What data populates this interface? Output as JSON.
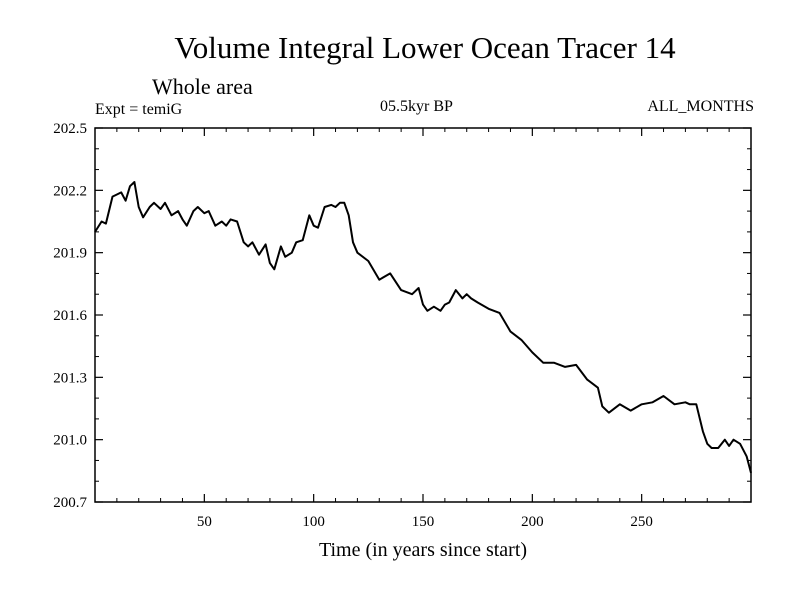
{
  "chart_data": {
    "type": "line",
    "title": "Volume Integral Lower Ocean Tracer 14",
    "subtitle": "Whole area",
    "experiment": "Expt = temiG",
    "period": "05.5kyr BP",
    "months": "ALL_MONTHS",
    "xlabel": "Time (in years since start)",
    "ylabel": "",
    "xlim": [
      0,
      300
    ],
    "ylim": [
      200.7,
      202.5
    ],
    "xticks": [
      50,
      100,
      150,
      200,
      250
    ],
    "xtick_labels": [
      "50",
      "100",
      "150",
      "200",
      "250"
    ],
    "yticks": [
      200.7,
      201.0,
      201.3,
      201.6,
      201.9,
      202.2,
      202.5
    ],
    "ytick_labels": [
      "200.7",
      "201.0",
      "201.3",
      "201.6",
      "201.9",
      "202.2",
      "202.5"
    ],
    "series": [
      {
        "name": "Lower Ocean Tracer 14",
        "x": [
          0,
          3,
          5,
          8,
          10,
          12,
          14,
          16,
          18,
          20,
          22,
          25,
          27,
          30,
          32,
          35,
          38,
          40,
          42,
          45,
          47,
          50,
          52,
          55,
          58,
          60,
          62,
          65,
          68,
          70,
          72,
          75,
          78,
          80,
          82,
          85,
          87,
          90,
          92,
          95,
          98,
          100,
          102,
          105,
          108,
          110,
          112,
          114,
          116,
          118,
          120,
          125,
          130,
          135,
          140,
          145,
          148,
          150,
          152,
          155,
          158,
          160,
          162,
          165,
          168,
          170,
          172,
          175,
          180,
          185,
          190,
          195,
          200,
          205,
          210,
          215,
          220,
          225,
          230,
          232,
          235,
          240,
          245,
          250,
          255,
          260,
          265,
          270,
          272,
          275,
          278,
          280,
          282,
          285,
          288,
          290,
          292,
          295,
          298,
          300
        ],
        "values": [
          202.0,
          202.05,
          202.04,
          202.17,
          202.18,
          202.19,
          202.15,
          202.22,
          202.24,
          202.12,
          202.07,
          202.12,
          202.14,
          202.11,
          202.14,
          202.08,
          202.1,
          202.06,
          202.03,
          202.1,
          202.12,
          202.09,
          202.1,
          202.03,
          202.05,
          202.03,
          202.06,
          202.05,
          201.95,
          201.93,
          201.95,
          201.89,
          201.94,
          201.85,
          201.82,
          201.93,
          201.88,
          201.9,
          201.95,
          201.96,
          202.08,
          202.03,
          202.02,
          202.12,
          202.13,
          202.12,
          202.14,
          202.14,
          202.08,
          201.95,
          201.9,
          201.86,
          201.77,
          201.8,
          201.72,
          201.7,
          201.73,
          201.65,
          201.62,
          201.64,
          201.62,
          201.65,
          201.66,
          201.72,
          201.68,
          201.7,
          201.68,
          201.66,
          201.63,
          201.61,
          201.52,
          201.48,
          201.42,
          201.37,
          201.37,
          201.35,
          201.36,
          201.29,
          201.25,
          201.16,
          201.13,
          201.17,
          201.14,
          201.17,
          201.18,
          201.21,
          201.17,
          201.18,
          201.17,
          201.17,
          201.04,
          200.98,
          200.96,
          200.96,
          201.0,
          200.97,
          201.0,
          200.98,
          200.92,
          200.84
        ]
      }
    ]
  }
}
